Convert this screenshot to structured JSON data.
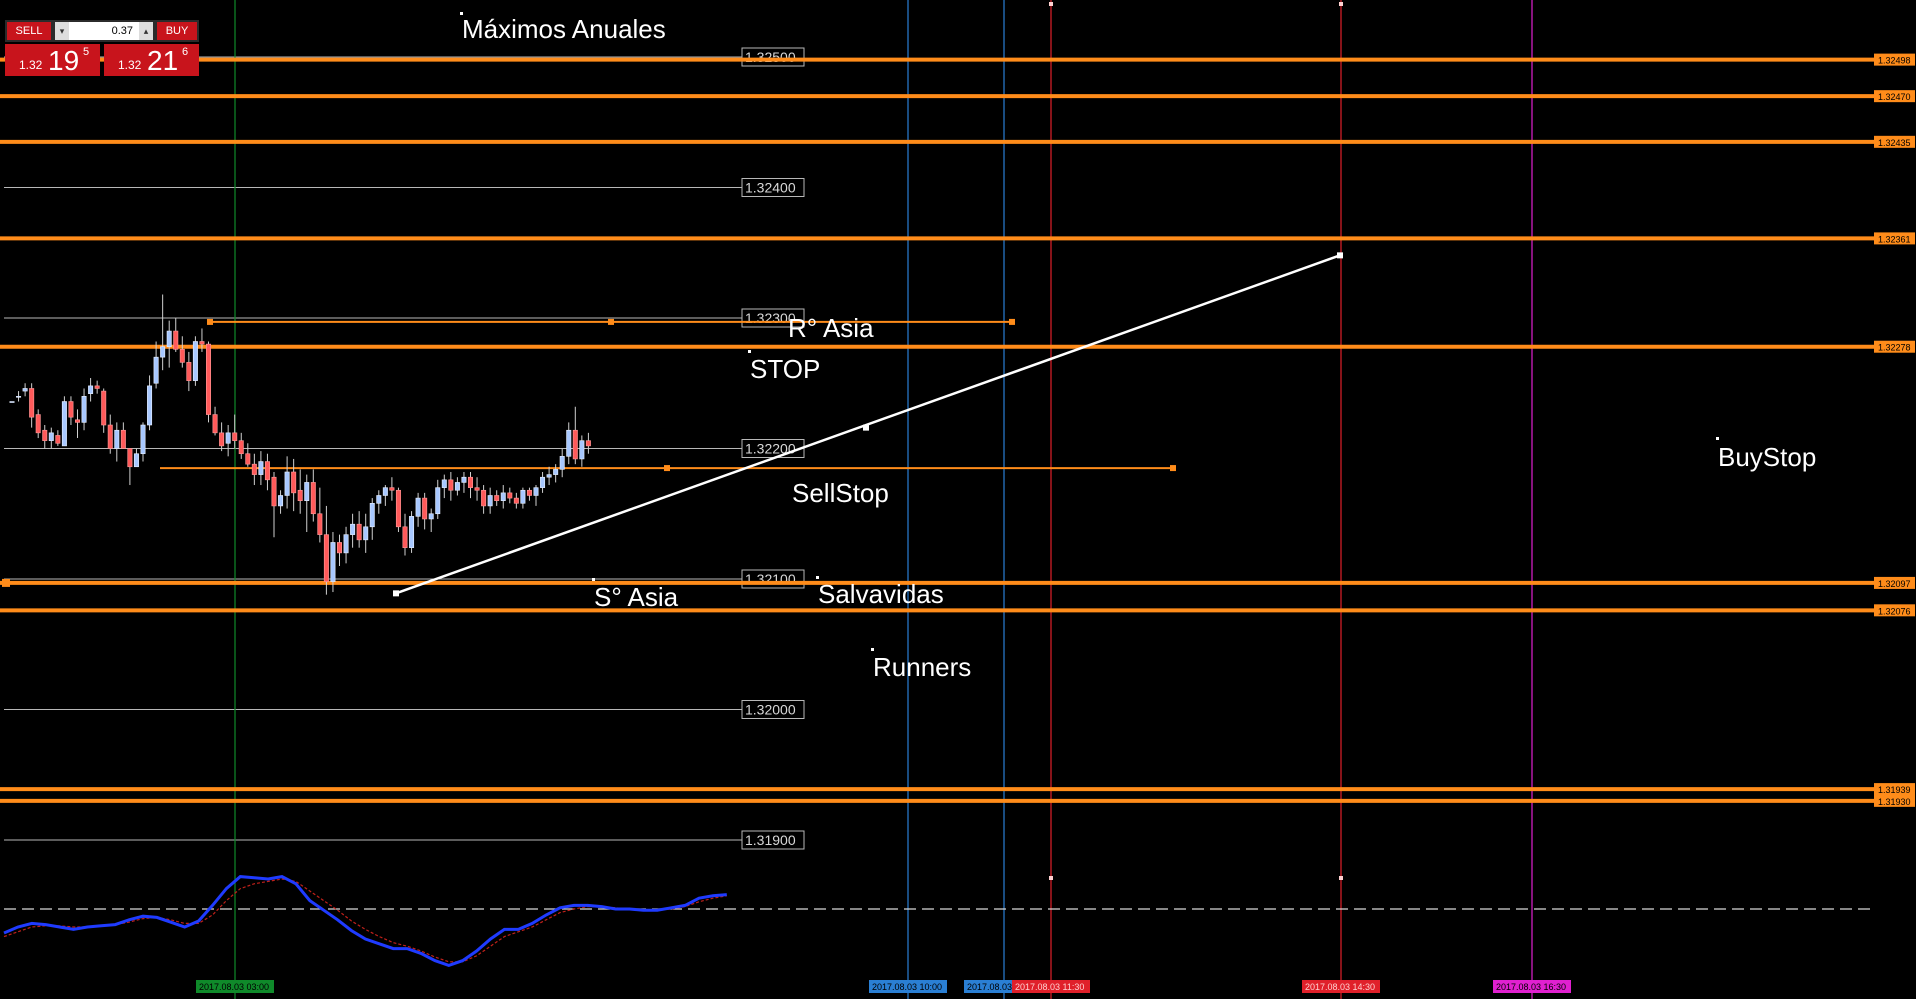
{
  "chart_data": {
    "type": "candlestick",
    "symbol_hint": "price chart",
    "ylim": [
      1.31834,
      1.32546
    ],
    "price_scale_labels": [
      "1.32500",
      "1.32400",
      "1.32300",
      "1.32200",
      "1.32100",
      "1.32000",
      "1.31900"
    ],
    "right_axis_labels": [
      "1.32498",
      "1.32470",
      "1.32435",
      "1.32361",
      "1.32278",
      "1.32097",
      "1.32076",
      "1.31939",
      "1.31930"
    ],
    "horizontal_levels": [
      {
        "price": 1.32498,
        "label": "1.32498",
        "color": "#ff8c1a"
      },
      {
        "price": 1.3247,
        "label": "1.32470",
        "color": "#ff8c1a"
      },
      {
        "price": 1.32435,
        "label": "1.32435",
        "color": "#ff8c1a"
      },
      {
        "price": 1.32361,
        "label": "1.32361",
        "color": "#ff8c1a"
      },
      {
        "price": 1.32278,
        "label": "1.32278",
        "color": "#ff8c1a"
      },
      {
        "price": 1.32097,
        "label": "1.32097",
        "color": "#ff8c1a"
      },
      {
        "price": 1.32076,
        "label": "1.32076",
        "color": "#ff8c1a"
      },
      {
        "price": 1.31939,
        "label": "1.31939",
        "color": "#ff8c1a"
      },
      {
        "price": 1.3193,
        "label": "1.31930",
        "color": "#ff8c1a"
      }
    ],
    "round_levels": [
      1.325,
      1.324,
      1.323,
      1.322,
      1.321,
      1.32,
      1.319
    ],
    "range_box": {
      "high": 1.32297,
      "low": 1.32185,
      "color": "#ff8c1a"
    },
    "time_markers": [
      {
        "label": "2017.08.03 03:00",
        "color": "#0f8a2a"
      },
      {
        "label": "2017.08.03 10:00",
        "color": "#2a7fd4"
      },
      {
        "label": "2017.08.03",
        "color": "#2a7fd4"
      },
      {
        "label": "2017.08.03 11:30",
        "color": "#e0202a"
      },
      {
        "label": "2017.08.03 14:30",
        "color": "#e0202a"
      },
      {
        "label": "2017.08.03 16:30",
        "color": "#e020d0"
      }
    ],
    "trendline": {
      "start_price": 1.32089,
      "mid_price": 1.32216,
      "end_price": 1.32348,
      "color": "#ffffff"
    },
    "candles": [
      [
        1.32236,
        1.32236,
        1.32236,
        1.32236
      ],
      [
        1.3224,
        1.32244,
        1.32236,
        1.3224
      ],
      [
        1.32244,
        1.3225,
        1.3224,
        1.32246
      ],
      [
        1.32246,
        1.3225,
        1.32216,
        1.32224
      ],
      [
        1.32226,
        1.3223,
        1.32208,
        1.32212
      ],
      [
        1.32214,
        1.32218,
        1.322,
        1.32206
      ],
      [
        1.32206,
        1.32216,
        1.322,
        1.32212
      ],
      [
        1.3221,
        1.32214,
        1.32202,
        1.32204
      ],
      [
        1.32202,
        1.3224,
        1.32202,
        1.32236
      ],
      [
        1.32236,
        1.3224,
        1.32218,
        1.32224
      ],
      [
        1.32222,
        1.3223,
        1.32208,
        1.3222
      ],
      [
        1.3222,
        1.32246,
        1.32214,
        1.3224
      ],
      [
        1.32242,
        1.32254,
        1.32236,
        1.32248
      ],
      [
        1.32248,
        1.32252,
        1.32242,
        1.32246
      ],
      [
        1.32244,
        1.32246,
        1.32212,
        1.32218
      ],
      [
        1.32218,
        1.32226,
        1.32196,
        1.322
      ],
      [
        1.322,
        1.3222,
        1.3219,
        1.32214
      ],
      [
        1.32214,
        1.3222,
        1.322,
        1.322
      ],
      [
        1.322,
        1.322,
        1.32172,
        1.32186
      ],
      [
        1.32186,
        1.322,
        1.32186,
        1.32196
      ],
      [
        1.32196,
        1.3222,
        1.3219,
        1.32218
      ],
      [
        1.32218,
        1.32256,
        1.32214,
        1.32248
      ],
      [
        1.3225,
        1.32282,
        1.32246,
        1.3227
      ],
      [
        1.3227,
        1.32318,
        1.3226,
        1.32278
      ],
      [
        1.32278,
        1.32298,
        1.32262,
        1.3229
      ],
      [
        1.3229,
        1.323,
        1.32274,
        1.32276
      ],
      [
        1.32276,
        1.32286,
        1.32262,
        1.32266
      ],
      [
        1.32266,
        1.32274,
        1.32244,
        1.32252
      ],
      [
        1.32252,
        1.32286,
        1.32248,
        1.32282
      ],
      [
        1.32282,
        1.32292,
        1.32274,
        1.3228
      ],
      [
        1.3228,
        1.32282,
        1.3222,
        1.32226
      ],
      [
        1.32226,
        1.32232,
        1.3221,
        1.32212
      ],
      [
        1.32212,
        1.3222,
        1.32198,
        1.32202
      ],
      [
        1.32204,
        1.32218,
        1.32194,
        1.32212
      ],
      [
        1.32212,
        1.32226,
        1.322,
        1.32206
      ],
      [
        1.32206,
        1.32212,
        1.32192,
        1.32196
      ],
      [
        1.32196,
        1.32204,
        1.32186,
        1.32188
      ],
      [
        1.32188,
        1.32196,
        1.32172,
        1.3218
      ],
      [
        1.3218,
        1.32198,
        1.32172,
        1.3219
      ],
      [
        1.3219,
        1.32196,
        1.32168,
        1.32176
      ],
      [
        1.32178,
        1.32182,
        1.32132,
        1.32156
      ],
      [
        1.32156,
        1.32168,
        1.3215,
        1.32164
      ],
      [
        1.32164,
        1.32194,
        1.32154,
        1.32182
      ],
      [
        1.32182,
        1.32192,
        1.32152,
        1.32166
      ],
      [
        1.32168,
        1.32184,
        1.3215,
        1.3216
      ],
      [
        1.3216,
        1.3218,
        1.32136,
        1.32174
      ],
      [
        1.32174,
        1.32184,
        1.32144,
        1.3215
      ],
      [
        1.3215,
        1.3217,
        1.32128,
        1.32134
      ],
      [
        1.32134,
        1.32156,
        1.32088,
        1.32098
      ],
      [
        1.32098,
        1.32136,
        1.3209,
        1.32128
      ],
      [
        1.32128,
        1.32134,
        1.3211,
        1.3212
      ],
      [
        1.3212,
        1.3214,
        1.32112,
        1.32134
      ],
      [
        1.32134,
        1.3215,
        1.32124,
        1.32142
      ],
      [
        1.32142,
        1.32152,
        1.32124,
        1.3213
      ],
      [
        1.3213,
        1.3215,
        1.3212,
        1.3214
      ],
      [
        1.3214,
        1.32162,
        1.3213,
        1.32158
      ],
      [
        1.32158,
        1.32168,
        1.3215,
        1.32164
      ],
      [
        1.32164,
        1.32172,
        1.32156,
        1.3217
      ],
      [
        1.3217,
        1.32178,
        1.3216,
        1.32168
      ],
      [
        1.32168,
        1.3217,
        1.32136,
        1.3214
      ],
      [
        1.3214,
        1.3215,
        1.32118,
        1.32124
      ],
      [
        1.32124,
        1.32152,
        1.3212,
        1.32148
      ],
      [
        1.32148,
        1.32166,
        1.3214,
        1.32162
      ],
      [
        1.32162,
        1.32166,
        1.32138,
        1.32146
      ],
      [
        1.32146,
        1.32154,
        1.32136,
        1.3215
      ],
      [
        1.3215,
        1.32176,
        1.32146,
        1.3217
      ],
      [
        1.3217,
        1.3218,
        1.32162,
        1.32176
      ],
      [
        1.32176,
        1.32182,
        1.3216,
        1.32168
      ],
      [
        1.32168,
        1.32178,
        1.32164,
        1.32174
      ],
      [
        1.32174,
        1.32182,
        1.32166,
        1.32178
      ],
      [
        1.32178,
        1.32182,
        1.32162,
        1.3217
      ],
      [
        1.3217,
        1.32178,
        1.3216,
        1.32168
      ],
      [
        1.32168,
        1.32172,
        1.3215,
        1.32156
      ],
      [
        1.32156,
        1.3217,
        1.3215,
        1.32164
      ],
      [
        1.32164,
        1.32168,
        1.32156,
        1.3216
      ],
      [
        1.3216,
        1.32172,
        1.32154,
        1.32166
      ],
      [
        1.32166,
        1.3217,
        1.32158,
        1.32162
      ],
      [
        1.32162,
        1.32166,
        1.32154,
        1.32158
      ],
      [
        1.32158,
        1.3217,
        1.32154,
        1.32168
      ],
      [
        1.32168,
        1.3217,
        1.3216,
        1.32164
      ],
      [
        1.32164,
        1.32172,
        1.32156,
        1.3217
      ],
      [
        1.3217,
        1.32182,
        1.32166,
        1.32178
      ],
      [
        1.32178,
        1.32186,
        1.32172,
        1.3218
      ],
      [
        1.3218,
        1.32188,
        1.32174,
        1.32184
      ],
      [
        1.32184,
        1.322,
        1.32178,
        1.32194
      ],
      [
        1.32194,
        1.3222,
        1.32188,
        1.32214
      ],
      [
        1.32214,
        1.32232,
        1.32188,
        1.32192
      ],
      [
        1.32192,
        1.3221,
        1.32186,
        1.32206
      ],
      [
        1.32206,
        1.32212,
        1.32196,
        1.32202
      ]
    ],
    "oscillator": {
      "main": [
        0.25,
        0.3,
        0.33,
        0.32,
        0.3,
        0.28,
        0.3,
        0.31,
        0.32,
        0.36,
        0.39,
        0.38,
        0.34,
        0.3,
        0.35,
        0.48,
        0.62,
        0.72,
        0.71,
        0.7,
        0.72,
        0.66,
        0.52,
        0.44,
        0.36,
        0.27,
        0.2,
        0.16,
        0.12,
        0.12,
        0.08,
        0.02,
        -0.02,
        0.02,
        0.1,
        0.2,
        0.28,
        0.28,
        0.33,
        0.4,
        0.46,
        0.48,
        0.48,
        0.47,
        0.45,
        0.45,
        0.44,
        0.44,
        0.46,
        0.48,
        0.54,
        0.56,
        0.57
      ],
      "signal": [
        0.22,
        0.26,
        0.3,
        0.31,
        0.31,
        0.3,
        0.3,
        0.31,
        0.32,
        0.34,
        0.37,
        0.38,
        0.36,
        0.33,
        0.33,
        0.4,
        0.52,
        0.62,
        0.66,
        0.68,
        0.7,
        0.68,
        0.6,
        0.52,
        0.44,
        0.35,
        0.28,
        0.22,
        0.17,
        0.14,
        0.1,
        0.05,
        0.01,
        0.01,
        0.06,
        0.14,
        0.22,
        0.26,
        0.3,
        0.36,
        0.42,
        0.45,
        0.47,
        0.47,
        0.46,
        0.45,
        0.44,
        0.44,
        0.45,
        0.47,
        0.51,
        0.54,
        0.56
      ],
      "level": 0.45
    }
  },
  "annotations": {
    "maximos": "Máximos Anuales",
    "r_asia": "R° Asia",
    "stop": "STOP",
    "sellstop": "SellStop",
    "s_asia": "S° Asia",
    "salvavidas": "Salvavidas",
    "runners": "Runners",
    "buystop": "BuyStop"
  },
  "trade_panel": {
    "sell_label": "SELL",
    "buy_label": "BUY",
    "lot": "0.37",
    "sell_small": "1.32",
    "sell_big": "19",
    "sell_sup": "5",
    "buy_small": "1.32",
    "buy_big": "21",
    "buy_sup": "6",
    "spin_down": "▾",
    "spin_up": "▴"
  },
  "colors": {
    "background": "#000000",
    "level_orange": "#ff8c1a",
    "bull": "#a8c8ff",
    "bear": "#ff5a5a",
    "trade_red": "#c8141c",
    "osc_main": "#1f3bff",
    "osc_signal": "#c0201a"
  }
}
